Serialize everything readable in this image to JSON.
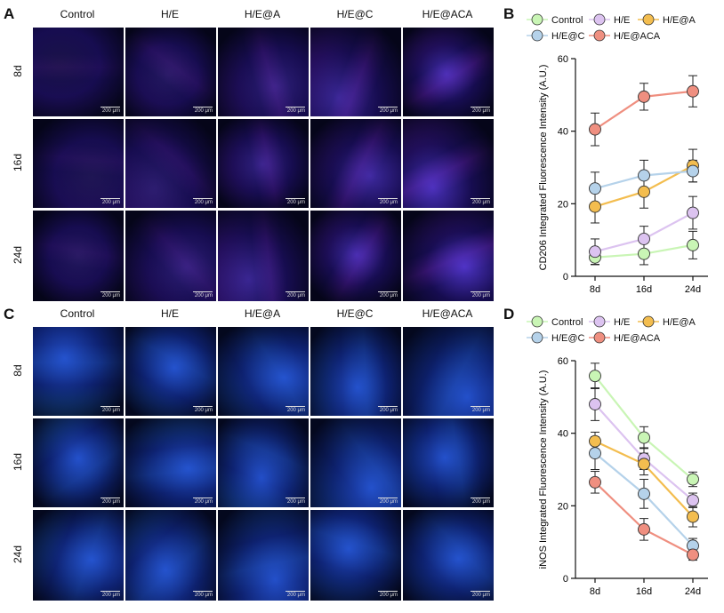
{
  "panels": {
    "A": {
      "letter": "A",
      "stain": "magenta"
    },
    "B": {
      "letter": "B"
    },
    "C": {
      "letter": "C",
      "stain": "green"
    },
    "D": {
      "letter": "D"
    }
  },
  "image_grid": {
    "columns": [
      "Control",
      "H/E",
      "H/E@A",
      "H/E@C",
      "H/E@ACA"
    ],
    "rows": [
      "8d",
      "16d",
      "24d"
    ],
    "scale_bar": "200 μm"
  },
  "colors": {
    "Control": "#c9f5b5",
    "H/E": "#dcc3f0",
    "H/E@A": "#f3bd4f",
    "H/E@C": "#b5d2ea",
    "H/E@ACA": "#ef8f80",
    "Control_edge": "#a9df8e",
    "H/E_edge": "#c7a4e4",
    "H/E@A_edge": "#dca03a",
    "H/E@C_edge": "#93b7d8",
    "H/E@ACA_edge": "#e36f60"
  },
  "chart_data": [
    {
      "type": "line",
      "panel": "B",
      "ylabel": "CD206 Integrated Fluorescence Intensity (A.U.)",
      "xlabel": "",
      "categories": [
        "8d",
        "16d",
        "24d"
      ],
      "ylim": [
        0,
        60
      ],
      "yticks": [
        0,
        20,
        40,
        60
      ],
      "legend": [
        "Control",
        "H/E",
        "H/E@A",
        "H/E@C",
        "H/E@ACA"
      ],
      "series": [
        {
          "name": "Control",
          "values": [
            5.2,
            6.2,
            8.6
          ],
          "err": [
            2.0,
            3.0,
            3.8
          ]
        },
        {
          "name": "H/E",
          "values": [
            6.8,
            10.3,
            17.5
          ],
          "err": [
            3.5,
            3.5,
            4.5
          ]
        },
        {
          "name": "H/E@A",
          "values": [
            19.2,
            23.3,
            30.5
          ],
          "err": [
            4.5,
            4.5,
            4.5
          ]
        },
        {
          "name": "H/E@C",
          "values": [
            24.2,
            27.8,
            29.0
          ],
          "err": [
            4.5,
            4.2,
            3.0
          ]
        },
        {
          "name": "H/E@ACA",
          "values": [
            40.5,
            49.5,
            51.0
          ],
          "err": [
            4.5,
            3.7,
            4.3
          ]
        }
      ]
    },
    {
      "type": "line",
      "panel": "D",
      "ylabel": "iNOS Integrated Fluorescence Intensity (A.U.)",
      "xlabel": "",
      "categories": [
        "8d",
        "16d",
        "24d"
      ],
      "ylim": [
        0,
        60
      ],
      "yticks": [
        0,
        20,
        40,
        60
      ],
      "legend": [
        "Control",
        "H/E",
        "H/E@A",
        "H/E@C",
        "H/E@ACA"
      ],
      "series": [
        {
          "name": "Control",
          "values": [
            55.8,
            38.8,
            27.3
          ],
          "err": [
            3.5,
            3.0,
            2.0
          ]
        },
        {
          "name": "H/E",
          "values": [
            48.0,
            33.0,
            21.5
          ],
          "err": [
            4.5,
            3.0,
            2.0
          ]
        },
        {
          "name": "H/E@A",
          "values": [
            37.8,
            31.5,
            17.0
          ],
          "err": [
            2.5,
            3.0,
            2.8
          ]
        },
        {
          "name": "H/E@C",
          "values": [
            34.5,
            23.3,
            9.0
          ],
          "err": [
            4.5,
            4.0,
            2.0
          ]
        },
        {
          "name": "H/E@ACA",
          "values": [
            26.5,
            13.5,
            6.5
          ],
          "err": [
            3.0,
            3.0,
            1.5
          ]
        }
      ]
    }
  ]
}
